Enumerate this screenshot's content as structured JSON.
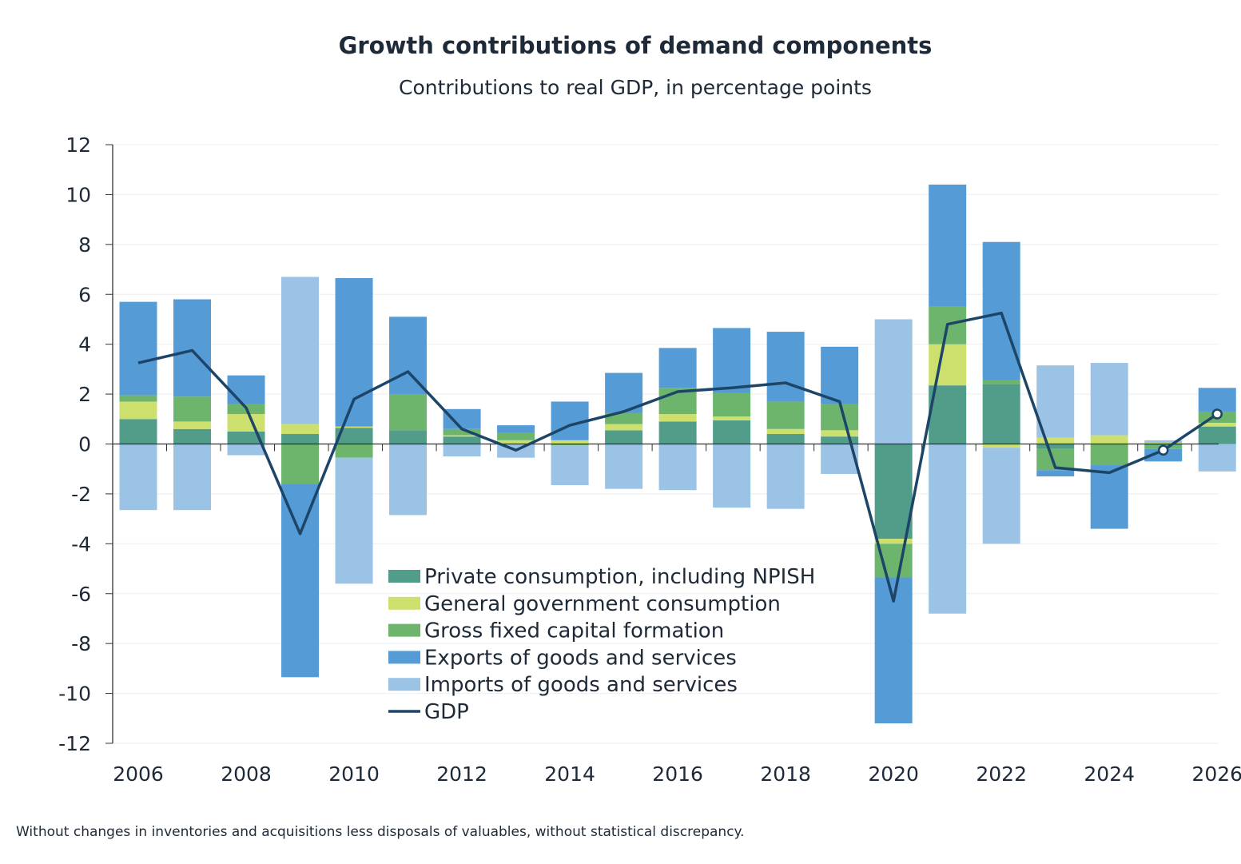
{
  "chart_data": {
    "type": "bar",
    "stacked": true,
    "title": "Growth contributions of demand components",
    "subtitle": "Contributions to real GDP, in percentage points",
    "footnote": "Without changes in inventories and acquisitions  less disposals of valuables, without statistical discrepancy.",
    "xlabel": "",
    "ylabel": "",
    "ylim": [
      -12,
      12
    ],
    "yticks": [
      12,
      10,
      8,
      6,
      4,
      2,
      0,
      -2,
      -4,
      -6,
      -8,
      -10,
      -12
    ],
    "ytick_labels": [
      "12",
      "10",
      "8",
      "6",
      "4",
      "2",
      "0",
      "-2",
      "-4",
      "-6",
      "-8",
      "-10",
      "-12"
    ],
    "categories": [
      "2006",
      "2007",
      "2008",
      "2009",
      "2010",
      "2011",
      "2012",
      "2013",
      "2014",
      "2015",
      "2016",
      "2017",
      "2018",
      "2019",
      "2020",
      "2021",
      "2022",
      "2023",
      "2024",
      "2025",
      "2026"
    ],
    "xtick_labels": [
      "2006",
      "2008",
      "2010",
      "2012",
      "2014",
      "2016",
      "2018",
      "2020",
      "2022",
      "2024",
      "2026"
    ],
    "series": [
      {
        "name": "Private consumption, including NPISH",
        "kind": "bar",
        "color": "#529c8a",
        "values": [
          1.0,
          0.6,
          0.5,
          0.4,
          0.65,
          0.55,
          0.3,
          0.0,
          0.0,
          0.55,
          0.9,
          0.95,
          0.4,
          0.3,
          -3.8,
          2.35,
          2.4,
          -0.2,
          0.0,
          -0.05,
          0.7
        ]
      },
      {
        "name": "General government consumption",
        "kind": "bar",
        "color": "#cde06e",
        "values": [
          0.7,
          0.3,
          0.7,
          0.4,
          0.05,
          0.0,
          0.05,
          0.15,
          0.15,
          0.25,
          0.3,
          0.15,
          0.2,
          0.25,
          -0.2,
          1.65,
          -0.15,
          0.25,
          0.35,
          0.05,
          0.15
        ]
      },
      {
        "name": "Gross fixed capital formation",
        "kind": "bar",
        "color": "#6db56d",
        "values": [
          0.25,
          1.0,
          0.4,
          -1.6,
          -0.55,
          1.45,
          0.25,
          0.3,
          -0.05,
          0.45,
          1.05,
          0.95,
          1.1,
          1.05,
          -1.35,
          1.5,
          0.15,
          -0.85,
          -0.85,
          -0.15,
          0.45
        ]
      },
      {
        "name": "Exports of goods and services",
        "kind": "bar",
        "color": "#559bd6",
        "values": [
          3.75,
          3.9,
          1.15,
          -7.75,
          5.95,
          3.1,
          0.8,
          0.3,
          1.55,
          1.6,
          1.6,
          2.6,
          2.8,
          2.3,
          -5.85,
          4.9,
          5.55,
          -0.25,
          -2.55,
          -0.5,
          0.95
        ]
      },
      {
        "name": "Imports of goods and services",
        "kind": "bar",
        "color": "#9bc3e6",
        "values": [
          -2.65,
          -2.65,
          -0.45,
          5.9,
          -5.05,
          -2.85,
          -0.5,
          -0.55,
          -1.6,
          -1.8,
          -1.85,
          -2.55,
          -2.6,
          -1.2,
          5.0,
          -6.8,
          -3.85,
          2.9,
          2.9,
          0.1,
          -1.1
        ]
      },
      {
        "name": "GDP",
        "kind": "line",
        "color": "#1d4568",
        "values": [
          3.25,
          3.75,
          1.45,
          -3.6,
          1.8,
          2.9,
          0.6,
          -0.25,
          0.75,
          1.3,
          2.1,
          2.25,
          2.45,
          1.7,
          -6.3,
          4.8,
          5.25,
          -0.95,
          -1.15,
          -0.25,
          1.2
        ],
        "marked_points": [
          "2025",
          "2026"
        ]
      }
    ],
    "legend_position": "center-bottom"
  }
}
